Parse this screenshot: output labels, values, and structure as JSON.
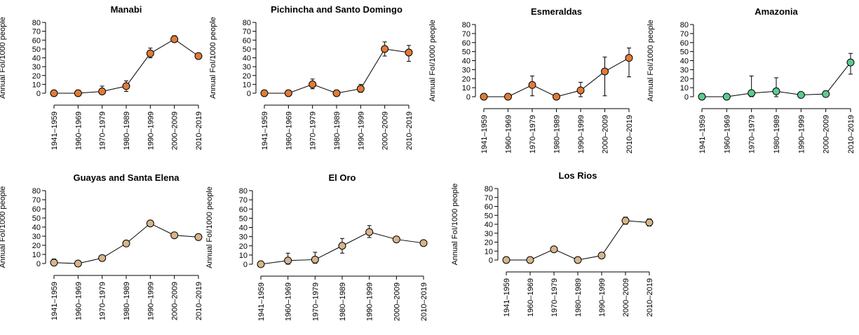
{
  "chart_data": [
    {
      "type": "line",
      "title": "Manabi",
      "ylabel": "Annual FoI/1000 people",
      "categories": [
        "1941–1959",
        "1960–1969",
        "1970–1979",
        "1980–1989",
        "1990–1999",
        "2000–2009",
        "2010–2019"
      ],
      "values": [
        0,
        0,
        2,
        8,
        45,
        61,
        42
      ],
      "lower": [
        0,
        0,
        0,
        2,
        40,
        58,
        39
      ],
      "upper": [
        0,
        0,
        8,
        14,
        51,
        65,
        45
      ],
      "color": "#E07B3A",
      "ylim": [
        0,
        80
      ],
      "yticks": [
        0,
        10,
        20,
        30,
        40,
        50,
        60,
        70,
        80
      ]
    },
    {
      "type": "line",
      "title": "Pichincha and Santo Domingo",
      "ylabel": "Annual FoI/1000 people",
      "categories": [
        "1941–1959",
        "1960–1969",
        "1970–1979",
        "1980–1989",
        "1990–1999",
        "2000–2009",
        "2010–2019"
      ],
      "values": [
        0,
        0,
        10,
        0,
        5,
        50,
        46
      ],
      "lower": [
        0,
        0,
        5,
        0,
        1,
        42,
        36
      ],
      "upper": [
        0,
        0,
        16,
        0,
        10,
        58,
        54
      ],
      "color": "#E07B3A",
      "ylim": [
        0,
        80
      ],
      "yticks": [
        0,
        10,
        20,
        30,
        40,
        50,
        60,
        70,
        80
      ]
    },
    {
      "type": "line",
      "title": "Esmeraldas",
      "ylabel": "Annual FoI/1000 people",
      "categories": [
        "1941–1959",
        "1960–1969",
        "1970–1979",
        "1980–1989",
        "1990–1999",
        "2000–2009",
        "2010–2019"
      ],
      "values": [
        0,
        0,
        13,
        0,
        7,
        28,
        43
      ],
      "lower": [
        0,
        0,
        1,
        0,
        0,
        1,
        22
      ],
      "upper": [
        0,
        0,
        23,
        0,
        16,
        44,
        54
      ],
      "color": "#E07B3A",
      "ylim": [
        0,
        80
      ],
      "yticks": [
        0,
        10,
        20,
        30,
        40,
        50,
        60,
        70,
        80
      ]
    },
    {
      "type": "line",
      "title": "Amazonia",
      "ylabel": "Annual FoI/1000 people",
      "categories": [
        "1941–1959",
        "1960–1969",
        "1970–1979",
        "1980–1989",
        "1990–1999",
        "2000–2009",
        "2010–2019"
      ],
      "values": [
        0,
        0,
        4,
        6,
        2,
        3,
        38
      ],
      "lower": [
        0,
        0,
        0,
        0,
        0,
        0,
        25
      ],
      "upper": [
        0,
        0,
        23,
        21,
        4,
        6,
        48
      ],
      "color": "#5CCB8F",
      "ylim": [
        0,
        80
      ],
      "yticks": [
        0,
        10,
        20,
        30,
        40,
        50,
        60,
        70,
        80
      ]
    },
    {
      "type": "line",
      "title": "Guayas and Santa Elena",
      "ylabel": "Annual FoI/1000 people",
      "categories": [
        "1941–1959",
        "1960–1969",
        "1970–1979",
        "1980–1989",
        "1990–1999",
        "2000–2009",
        "2010–2019"
      ],
      "values": [
        1,
        0,
        6,
        22,
        44,
        31,
        29
      ],
      "lower": [
        0,
        0,
        4,
        20,
        41,
        29,
        27
      ],
      "upper": [
        5,
        0,
        8,
        24,
        47,
        33,
        31
      ],
      "color": "#D7B48A",
      "ylim": [
        0,
        80
      ],
      "yticks": [
        0,
        10,
        20,
        30,
        40,
        50,
        60,
        70,
        80
      ]
    },
    {
      "type": "line",
      "title": "El Oro",
      "ylabel": "Annual FoI/1000 people",
      "categories": [
        "1941–1959",
        "1960–1969",
        "1970–1979",
        "1980–1989",
        "1990–1999",
        "2000–2009",
        "2010–2019"
      ],
      "values": [
        0,
        4,
        5,
        20,
        35,
        27,
        23
      ],
      "lower": [
        0,
        0,
        1,
        12,
        29,
        25,
        21
      ],
      "upper": [
        0,
        12,
        13,
        28,
        42,
        29,
        25
      ],
      "color": "#D7B48A",
      "ylim": [
        0,
        80
      ],
      "yticks": [
        0,
        10,
        20,
        30,
        40,
        50,
        60,
        70,
        80
      ]
    },
    {
      "type": "line",
      "title": "Los Rios",
      "ylabel": "Annual FoI/1000 people",
      "categories": [
        "1941–1959",
        "1960–1969",
        "1970–1979",
        "1980–1989",
        "1990–1999",
        "2000–2009",
        "2010–2019"
      ],
      "values": [
        0,
        0,
        12,
        0,
        5,
        44,
        42
      ],
      "lower": [
        0,
        0,
        9,
        0,
        3,
        40,
        38
      ],
      "upper": [
        0,
        0,
        15,
        0,
        7,
        48,
        46
      ],
      "color": "#D7B48A",
      "ylim": [
        0,
        80
      ],
      "yticks": [
        0,
        10,
        20,
        30,
        40,
        50,
        60,
        70,
        80
      ]
    }
  ]
}
